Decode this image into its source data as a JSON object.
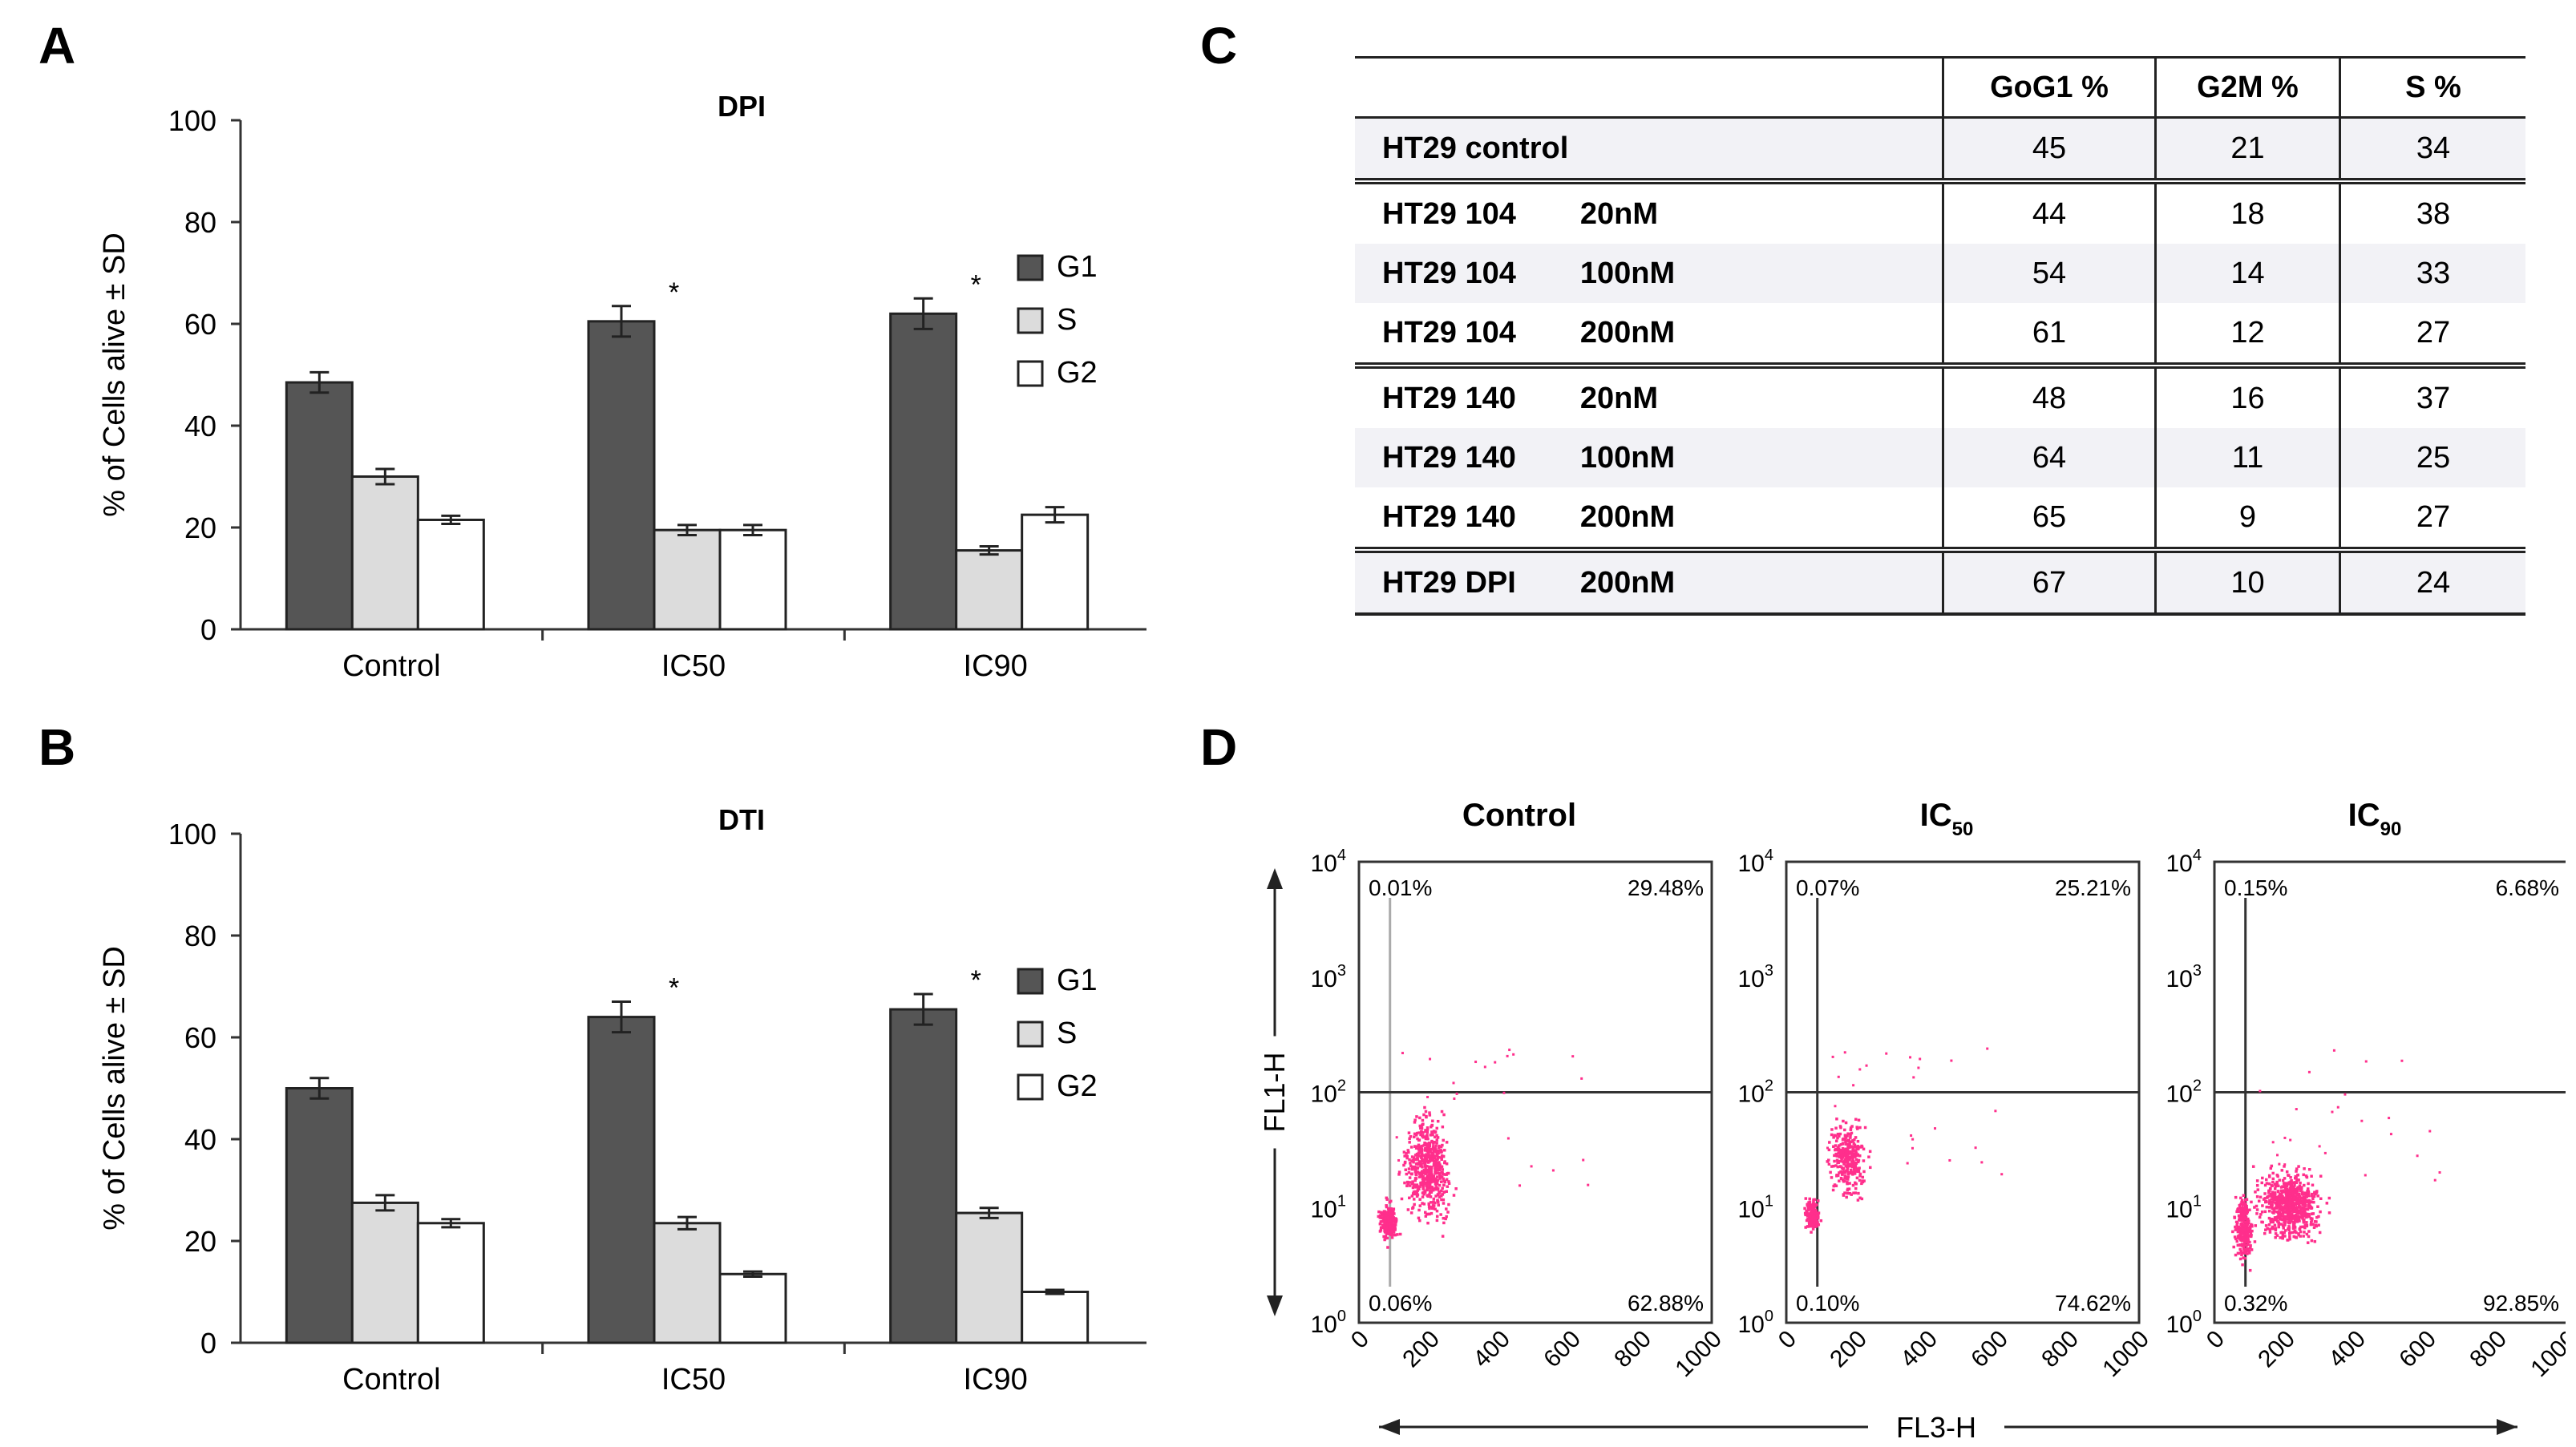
{
  "panels": {
    "a": "A",
    "b": "B",
    "c": "C",
    "d": "D"
  },
  "colors": {
    "g1_bar": "#555555",
    "s_bar": "#dcdcdc",
    "g2_bar": "#ffffff",
    "dot": "#ff2f8c"
  },
  "chart_data": [
    {
      "type": "bar",
      "panel": "A",
      "title": "DPI",
      "ylabel": "% of Cells alive ± SD",
      "ylim": [
        0,
        100
      ],
      "yticks": [
        0,
        20,
        40,
        60,
        80,
        100
      ],
      "categories": [
        "Control",
        "IC50",
        "IC90"
      ],
      "series": [
        {
          "name": "G1",
          "values": [
            48.5,
            60.5,
            62
          ],
          "errors": [
            2,
            3,
            3
          ]
        },
        {
          "name": "S",
          "values": [
            30,
            19.5,
            15.5
          ],
          "errors": [
            1.5,
            1,
            0.8
          ]
        },
        {
          "name": "G2",
          "values": [
            21.5,
            19.5,
            22.5
          ],
          "errors": [
            0.8,
            1,
            1.5
          ]
        }
      ],
      "significance": [
        "",
        "*",
        "*"
      ],
      "legend_position": "right"
    },
    {
      "type": "bar",
      "panel": "B",
      "title": "DTI",
      "ylabel": "% of Cells alive ± SD",
      "ylim": [
        0,
        100
      ],
      "yticks": [
        0,
        20,
        40,
        60,
        80,
        100
      ],
      "categories": [
        "Control",
        "IC50",
        "IC90"
      ],
      "series": [
        {
          "name": "G1",
          "values": [
            50,
            64,
            65.5
          ],
          "errors": [
            2,
            3,
            3
          ]
        },
        {
          "name": "S",
          "values": [
            27.5,
            23.5,
            25.5
          ],
          "errors": [
            1.5,
            1.2,
            1
          ]
        },
        {
          "name": "G2",
          "values": [
            23.5,
            13.5,
            10
          ],
          "errors": [
            0.8,
            0.5,
            0.4
          ]
        }
      ],
      "significance": [
        "",
        "*",
        "*"
      ],
      "legend_position": "right"
    },
    {
      "type": "table",
      "panel": "C",
      "columns": [
        "",
        "GoG1 %",
        "G2M %",
        "S %"
      ],
      "rows": [
        {
          "label": "HT29 control",
          "conc": "",
          "values": [
            45,
            21,
            34
          ],
          "group_start": false,
          "shaded": true
        },
        {
          "label": "HT29 104",
          "conc": "20nM",
          "values": [
            44,
            18,
            38
          ],
          "group_start": true,
          "shaded": false
        },
        {
          "label": "HT29 104",
          "conc": "100nM",
          "values": [
            54,
            14,
            33
          ],
          "group_start": false,
          "shaded": true
        },
        {
          "label": "HT29 104",
          "conc": "200nM",
          "values": [
            61,
            12,
            27
          ],
          "group_start": false,
          "shaded": false
        },
        {
          "label": "HT29 140",
          "conc": "20nM",
          "values": [
            48,
            16,
            37
          ],
          "group_start": true,
          "shaded": false
        },
        {
          "label": "HT29 140",
          "conc": "100nM",
          "values": [
            64,
            11,
            25
          ],
          "group_start": false,
          "shaded": true
        },
        {
          "label": "HT29 140",
          "conc": "200nM",
          "values": [
            65,
            9,
            27
          ],
          "group_start": false,
          "shaded": false
        },
        {
          "label": "HT29 DPI",
          "conc": "200nM",
          "values": [
            67,
            10,
            24
          ],
          "group_start": true,
          "shaded": true
        }
      ]
    },
    {
      "type": "scatter",
      "panel": "D",
      "xlabel": "FL3-H",
      "ylabel": "FL1-H",
      "xticks": [
        "0",
        "200",
        "400",
        "600",
        "800",
        "1000"
      ],
      "yticks_exp": [
        "0",
        "1",
        "2",
        "3",
        "4"
      ],
      "plots": [
        {
          "title_main": "Control",
          "title_sub": "",
          "quadrants": {
            "ul": "0.01%",
            "ur": "29.48%",
            "ll": "0.06%",
            "lr": "62.88%"
          }
        },
        {
          "title_main": "IC",
          "title_sub": "50",
          "quadrants": {
            "ul": "0.07%",
            "ur": "25.21%",
            "ll": "0.10%",
            "lr": "74.62%"
          }
        },
        {
          "title_main": "IC",
          "title_sub": "90",
          "quadrants": {
            "ul": "0.15%",
            "ur": "6.68%",
            "ll": "0.32%",
            "lr": "92.85%"
          }
        }
      ]
    }
  ]
}
